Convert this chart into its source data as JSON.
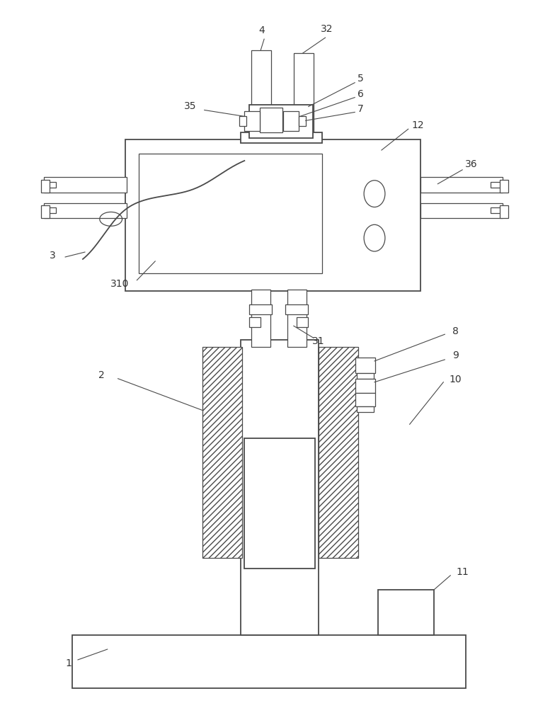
{
  "bg_color": "#ffffff",
  "line_color": "#4a4a4a",
  "label_color": "#333333",
  "fig_width": 7.84,
  "fig_height": 10.0
}
